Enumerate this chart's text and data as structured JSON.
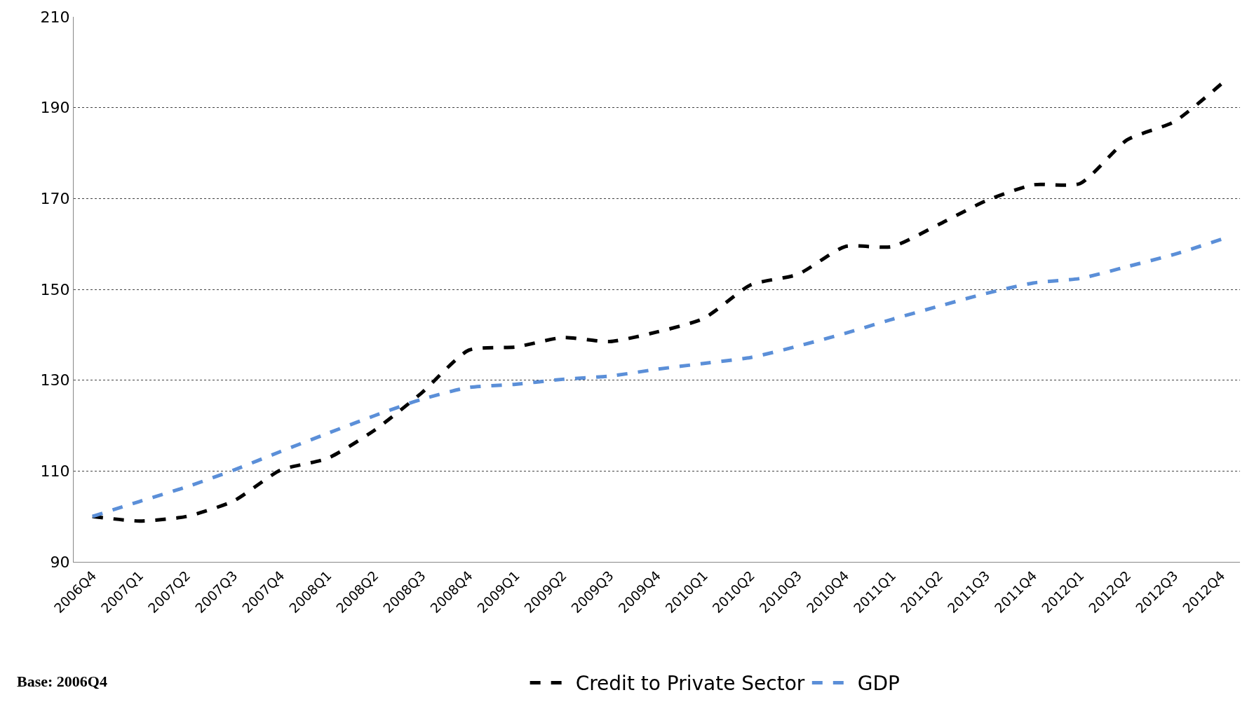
{
  "chart_data": {
    "type": "line",
    "categories": [
      "2006Q4",
      "2007Q1",
      "2007Q2",
      "2007Q3",
      "2007Q4",
      "2008Q1",
      "2008Q2",
      "2008Q3",
      "2008Q4",
      "2009Q1",
      "2009Q2",
      "2009Q3",
      "2009Q4",
      "2010Q1",
      "2010Q2",
      "2010Q3",
      "2010Q4",
      "2011Q1",
      "2011Q2",
      "2011Q3",
      "2011Q4",
      "2012Q1",
      "2012Q2",
      "2012Q3",
      "2012Q4"
    ],
    "series": [
      {
        "name": "Credit to Private Sector",
        "color": "#000000",
        "values": [
          100,
          99,
          100,
          103.4,
          110.2,
          112.8,
          119,
          127.2,
          136.6,
          137.3,
          139.4,
          138.5,
          140.6,
          143.6,
          151,
          153.3,
          159.4,
          159.4,
          164.3,
          169.5,
          173,
          173.3,
          182.9,
          186.9,
          195.2
        ]
      },
      {
        "name": "GDP",
        "color": "#5b8fd8",
        "values": [
          100,
          103.3,
          106.5,
          110.2,
          114.3,
          118.3,
          122.2,
          125.8,
          128.4,
          129.1,
          130.2,
          130.9,
          132.4,
          133.7,
          135,
          137.5,
          140.3,
          143.4,
          146.3,
          149.1,
          151.4,
          152.4,
          155,
          157.7,
          161
        ]
      }
    ],
    "ylim": [
      90,
      210
    ],
    "yticks": [
      90,
      110,
      130,
      150,
      170,
      190,
      210
    ],
    "grid": "y",
    "legend": "bottom",
    "line_style": "dashed",
    "marker": "none",
    "annotations": [
      "Base: 2006Q4"
    ]
  }
}
